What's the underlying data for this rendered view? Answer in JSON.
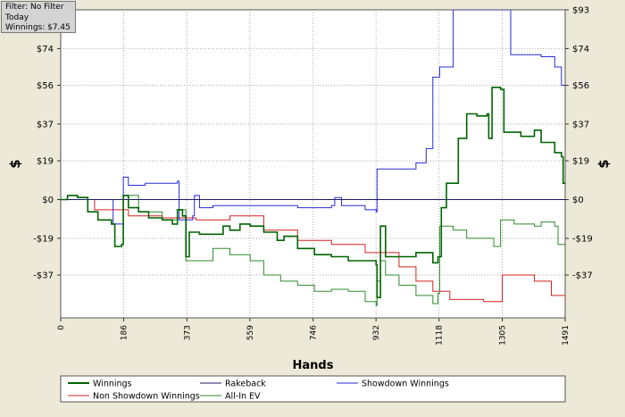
{
  "info_box": {
    "filter": "Filter: No Filter",
    "period": "Today",
    "winnings": "Winnings: $7.45"
  },
  "colors": {
    "background": "#ece9d8",
    "plot_background": "#ffffff",
    "winnings": "#006400",
    "rakeback": "#1a1a66",
    "showdown": "#2b2bd6",
    "non_showdown": "#d62020",
    "all_in_ev": "#2e8b2e"
  },
  "chart_data": {
    "type": "line",
    "title": "",
    "xlabel": "Hands",
    "ylabel": "$",
    "ylabel_right": "$",
    "xlim": [
      0,
      1491
    ],
    "ylim": [
      -58,
      93
    ],
    "grid": true,
    "x_ticks": [
      0,
      186,
      373,
      559,
      746,
      932,
      1118,
      1305,
      1491
    ],
    "y_ticks": [
      {
        "value": 93,
        "label": "$93"
      },
      {
        "value": 74,
        "label": "$74"
      },
      {
        "value": 56,
        "label": "$56"
      },
      {
        "value": 37,
        "label": "$37"
      },
      {
        "value": 19,
        "label": "$19"
      },
      {
        "value": 0,
        "label": "$0"
      },
      {
        "value": -19,
        "label": "-$19"
      },
      {
        "value": -37,
        "label": "-$37"
      }
    ],
    "legend_position": "bottom",
    "series": [
      {
        "name": "Winnings",
        "color": "#006400",
        "points": [
          [
            0,
            0
          ],
          [
            20,
            2
          ],
          [
            50,
            1
          ],
          [
            80,
            -6
          ],
          [
            110,
            -10
          ],
          [
            150,
            -12
          ],
          [
            160,
            -23
          ],
          [
            180,
            -22
          ],
          [
            185,
            2
          ],
          [
            200,
            -4
          ],
          [
            230,
            -6
          ],
          [
            260,
            -9
          ],
          [
            300,
            -10
          ],
          [
            330,
            -12
          ],
          [
            345,
            -5
          ],
          [
            360,
            -8
          ],
          [
            370,
            -28
          ],
          [
            380,
            -16
          ],
          [
            410,
            -17
          ],
          [
            450,
            -17
          ],
          [
            480,
            -13
          ],
          [
            500,
            -15
          ],
          [
            530,
            -12
          ],
          [
            560,
            -13
          ],
          [
            600,
            -16
          ],
          [
            640,
            -20
          ],
          [
            660,
            -18
          ],
          [
            700,
            -24
          ],
          [
            750,
            -27
          ],
          [
            800,
            -28
          ],
          [
            850,
            -30
          ],
          [
            900,
            -30
          ],
          [
            932,
            -32
          ],
          [
            935,
            -48
          ],
          [
            945,
            -13
          ],
          [
            960,
            -28
          ],
          [
            990,
            -28
          ],
          [
            1050,
            -26
          ],
          [
            1100,
            -31
          ],
          [
            1115,
            -28
          ],
          [
            1125,
            -4
          ],
          [
            1140,
            8
          ],
          [
            1160,
            8
          ],
          [
            1175,
            30
          ],
          [
            1200,
            42
          ],
          [
            1230,
            41
          ],
          [
            1260,
            42
          ],
          [
            1265,
            30
          ],
          [
            1275,
            55
          ],
          [
            1300,
            54
          ],
          [
            1310,
            33
          ],
          [
            1360,
            31
          ],
          [
            1400,
            34
          ],
          [
            1420,
            28
          ],
          [
            1460,
            23
          ],
          [
            1480,
            21
          ],
          [
            1485,
            8
          ],
          [
            1491,
            7.45
          ]
        ]
      },
      {
        "name": "Rakeback",
        "color": "#1a1a66",
        "points": [
          [
            0,
            0
          ],
          [
            1491,
            0
          ]
        ]
      },
      {
        "name": "Showdown Winnings",
        "color": "#2b2bd6",
        "points": [
          [
            0,
            0
          ],
          [
            150,
            0
          ],
          [
            155,
            -12
          ],
          [
            180,
            -12
          ],
          [
            185,
            11
          ],
          [
            200,
            7
          ],
          [
            250,
            8
          ],
          [
            300,
            8
          ],
          [
            345,
            9
          ],
          [
            350,
            -10
          ],
          [
            390,
            -8
          ],
          [
            395,
            2
          ],
          [
            410,
            -4
          ],
          [
            450,
            -3
          ],
          [
            550,
            -3
          ],
          [
            650,
            -3
          ],
          [
            700,
            -4
          ],
          [
            800,
            -3
          ],
          [
            810,
            1
          ],
          [
            830,
            -3
          ],
          [
            900,
            -5
          ],
          [
            932,
            -6
          ],
          [
            935,
            15
          ],
          [
            1050,
            18
          ],
          [
            1080,
            25
          ],
          [
            1100,
            60
          ],
          [
            1120,
            65
          ],
          [
            1160,
            93
          ],
          [
            1305,
            93
          ],
          [
            1330,
            71
          ],
          [
            1420,
            70
          ],
          [
            1460,
            65
          ],
          [
            1480,
            56
          ],
          [
            1491,
            56
          ]
        ]
      },
      {
        "name": "Non Showdown Winnings",
        "color": "#d62020",
        "points": [
          [
            0,
            0
          ],
          [
            100,
            -5
          ],
          [
            200,
            -8
          ],
          [
            300,
            -9
          ],
          [
            400,
            -10
          ],
          [
            500,
            -8
          ],
          [
            600,
            -15
          ],
          [
            700,
            -20
          ],
          [
            800,
            -22
          ],
          [
            900,
            -26
          ],
          [
            1000,
            -33
          ],
          [
            1050,
            -40
          ],
          [
            1100,
            -45
          ],
          [
            1150,
            -49
          ],
          [
            1250,
            -50
          ],
          [
            1305,
            -37
          ],
          [
            1400,
            -40
          ],
          [
            1450,
            -47
          ],
          [
            1491,
            -50
          ]
        ]
      },
      {
        "name": "All-In EV",
        "color": "#2e8b2e",
        "points": [
          [
            0,
            0
          ],
          [
            80,
            -6
          ],
          [
            110,
            -10
          ],
          [
            150,
            -12
          ],
          [
            160,
            -23
          ],
          [
            180,
            -22
          ],
          [
            185,
            2
          ],
          [
            230,
            -6
          ],
          [
            300,
            -10
          ],
          [
            345,
            -5
          ],
          [
            370,
            -30
          ],
          [
            400,
            -30
          ],
          [
            450,
            -24
          ],
          [
            500,
            -27
          ],
          [
            560,
            -30
          ],
          [
            600,
            -37
          ],
          [
            650,
            -40
          ],
          [
            700,
            -42
          ],
          [
            750,
            -45
          ],
          [
            800,
            -44
          ],
          [
            850,
            -45
          ],
          [
            900,
            -50
          ],
          [
            932,
            -52
          ],
          [
            935,
            -40
          ],
          [
            945,
            -30
          ],
          [
            960,
            -37
          ],
          [
            1000,
            -42
          ],
          [
            1050,
            -47
          ],
          [
            1100,
            -51
          ],
          [
            1115,
            -46
          ],
          [
            1120,
            -13
          ],
          [
            1160,
            -15
          ],
          [
            1200,
            -19
          ],
          [
            1280,
            -23
          ],
          [
            1300,
            -10
          ],
          [
            1340,
            -12
          ],
          [
            1400,
            -13
          ],
          [
            1420,
            -11
          ],
          [
            1460,
            -13
          ],
          [
            1470,
            -22
          ],
          [
            1491,
            -40
          ]
        ]
      }
    ]
  },
  "legend": {
    "items": [
      {
        "label": "Winnings",
        "color": "#006400"
      },
      {
        "label": "Rakeback",
        "color": "#1a1a66"
      },
      {
        "label": "Showdown Winnings",
        "color": "#2b2bd6"
      },
      {
        "label": "Non Showdown Winnings",
        "color": "#d62020"
      },
      {
        "label": "All-In EV",
        "color": "#2e8b2e"
      }
    ]
  }
}
